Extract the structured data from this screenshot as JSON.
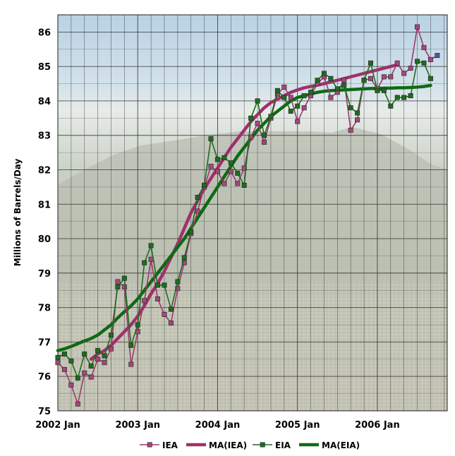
{
  "chart_data": {
    "type": "line",
    "title": "",
    "xlabel": "",
    "ylabel": "Millions of Barrels/Day",
    "ylim": [
      75,
      86.5
    ],
    "yticks": [
      75,
      76,
      77,
      78,
      79,
      80,
      81,
      82,
      83,
      84,
      85,
      86
    ],
    "xlim": [
      0,
      58.5
    ],
    "xticks": [
      {
        "label": "2002 Jan",
        "month": 0
      },
      {
        "label": "2003 Jan",
        "month": 12
      },
      {
        "label": "2004 Jan",
        "month": 24
      },
      {
        "label": "2005 Jan",
        "month": 36
      },
      {
        "label": "2006 Jan",
        "month": 48
      }
    ],
    "grid": true,
    "legend_position": "bottom",
    "colors": {
      "iea": "#9b3a6a",
      "ea_fill": "#a2487a",
      "eia": "#1f6b1f",
      "ma_iea": "#a0306b",
      "ma_eia": "#0d6a14",
      "last_marker": "#5a55a0"
    },
    "series": [
      {
        "name": "IEA",
        "values": [
          76.4,
          76.2,
          75.75,
          75.2,
          76.1,
          75.98,
          76.5,
          76.4,
          76.8,
          78.75,
          78.6,
          76.35,
          77.3,
          78.2,
          79.4,
          78.25,
          77.8,
          77.55,
          78.55,
          79.3,
          80.15,
          80.8,
          81.5,
          82.1,
          81.95,
          81.6,
          81.95,
          81.6,
          82.05,
          82.95,
          83.35,
          82.8,
          83.5,
          84.2,
          84.4,
          84.1,
          83.4,
          83.8,
          84.15,
          84.5,
          84.7,
          84.1,
          84.25,
          84.6,
          83.15,
          83.45,
          84.6,
          84.65,
          84.35,
          84.7,
          84.7,
          85.1,
          84.8,
          84.95,
          86.15,
          85.55,
          85.2,
          85.32
        ]
      },
      {
        "name": "MA(IEA)",
        "values": [
          null,
          null,
          null,
          null,
          null,
          76.5,
          76.65,
          76.75,
          76.9,
          77.1,
          77.3,
          77.5,
          77.75,
          78.05,
          78.4,
          78.7,
          79.05,
          79.45,
          79.85,
          80.3,
          80.75,
          81.1,
          81.45,
          81.75,
          82.05,
          82.35,
          82.65,
          82.9,
          83.15,
          83.4,
          83.6,
          83.8,
          83.95,
          84.05,
          84.15,
          84.25,
          84.32,
          84.38,
          84.42,
          84.46,
          84.5,
          84.55,
          84.6,
          84.65,
          84.7,
          84.75,
          84.8,
          84.85,
          84.9,
          84.95,
          85.0,
          85.05
        ]
      },
      {
        "name": "EIA",
        "values": [
          76.55,
          76.65,
          76.45,
          75.95,
          76.65,
          76.3,
          76.75,
          76.6,
          77.2,
          78.6,
          78.85,
          76.9,
          77.5,
          79.3,
          79.8,
          78.65,
          78.65,
          77.95,
          78.75,
          79.45,
          80.2,
          81.2,
          81.55,
          82.9,
          82.3,
          82.35,
          82.2,
          81.9,
          81.55,
          83.5,
          84.0,
          83.0,
          83.55,
          84.3,
          84.1,
          83.7,
          83.85,
          84.15,
          84.25,
          84.6,
          84.8,
          84.65,
          84.35,
          84.45,
          83.8,
          83.65,
          84.6,
          85.1,
          84.3,
          84.3,
          83.85,
          84.1,
          84.1,
          84.15,
          85.15,
          85.1,
          84.65
        ]
      },
      {
        "name": "MA(EIA)",
        "values": [
          76.75,
          76.8,
          76.87,
          76.95,
          77.03,
          77.1,
          77.2,
          77.35,
          77.5,
          77.7,
          77.88,
          78.05,
          78.25,
          78.5,
          78.75,
          79.0,
          79.25,
          79.5,
          79.75,
          80.0,
          80.3,
          80.6,
          80.9,
          81.2,
          81.5,
          81.8,
          82.1,
          82.4,
          82.65,
          82.9,
          83.15,
          83.35,
          83.55,
          83.7,
          83.85,
          84.0,
          84.1,
          84.15,
          84.2,
          84.25,
          84.28,
          84.3,
          84.31,
          84.32,
          84.33,
          84.34,
          84.35,
          84.36,
          84.36,
          84.37,
          84.37,
          84.38,
          84.38,
          84.39,
          84.4,
          84.42,
          84.45
        ]
      }
    ]
  }
}
